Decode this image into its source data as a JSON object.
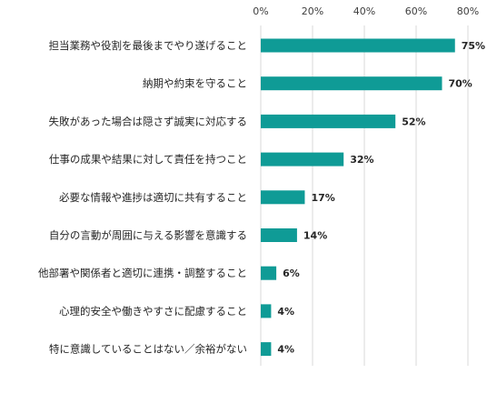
{
  "chart_data": {
    "type": "bar",
    "orientation": "horizontal",
    "title": "",
    "xlabel": "",
    "ylabel": "",
    "xlim": [
      0,
      80
    ],
    "x_ticks": [
      0,
      20,
      40,
      60,
      80
    ],
    "x_tick_labels": [
      "0%",
      "20%",
      "40%",
      "60%",
      "80%"
    ],
    "x_axis_position": "top",
    "grid": true,
    "legend": "none",
    "bar_color": "#0f9b96",
    "categories": [
      "担当業務や役割を最後までやり遂げること",
      "納期や約束を守ること",
      "失敗があった場合は隠さず誠実に対応する",
      "仕事の成果や結果に対して責任を持つこと",
      "必要な情報や進捗は適切に共有すること",
      "自分の言動が周囲に与える影響を意識する",
      "他部署や関係者と適切に連携・調整すること",
      "心理的安全や働きやすさに配慮すること",
      "特に意識していることはない／余裕がない"
    ],
    "values": [
      75,
      70,
      52,
      32,
      17,
      14,
      6,
      4,
      4
    ],
    "data_labels": [
      "75%",
      "70%",
      "52%",
      "32%",
      "17%",
      "14%",
      "6%",
      "4%",
      "4%"
    ]
  }
}
